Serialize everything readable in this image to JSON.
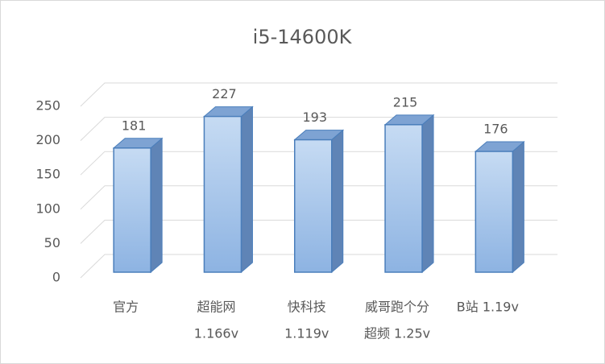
{
  "chart_data": {
    "type": "bar3d",
    "title": "i5-14600K",
    "categories": [
      [
        "官方"
      ],
      [
        "超能网",
        "1.166v"
      ],
      [
        "快科技",
        "1.119v"
      ],
      [
        "威哥跑个分",
        "超频 1.25v"
      ],
      [
        "B站 1.19v"
      ]
    ],
    "values": [
      181,
      227,
      193,
      215,
      176
    ],
    "color": "#8db3e2",
    "ylim": [
      0,
      250
    ],
    "yticks": [
      0,
      50,
      100,
      150,
      200,
      250
    ],
    "grid": true
  }
}
